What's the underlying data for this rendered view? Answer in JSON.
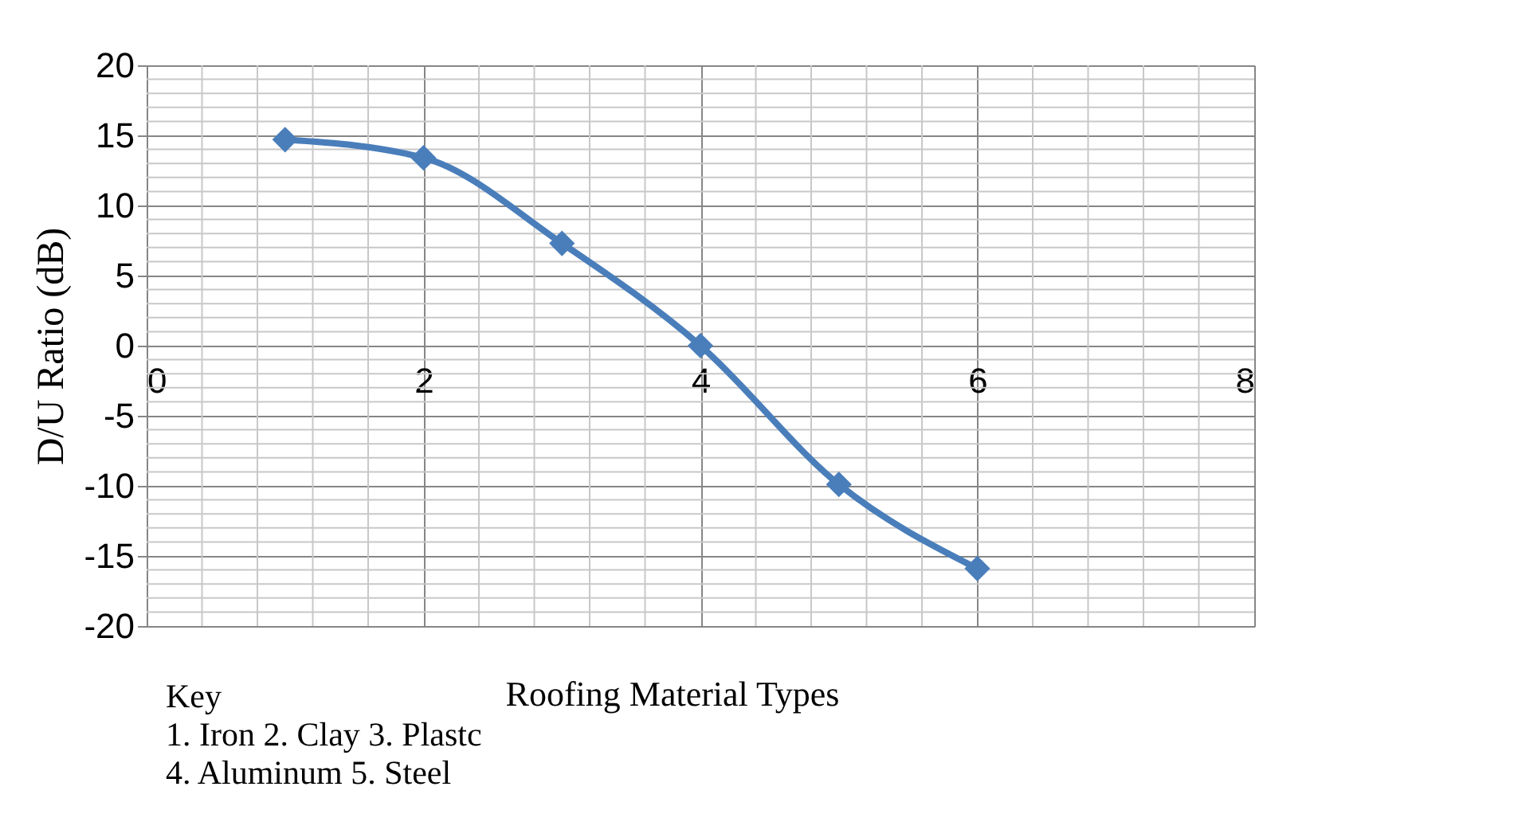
{
  "chart_data": {
    "type": "line",
    "xlabel": "Roofing Material Types",
    "ylabel": "D/U Ratio (dB)",
    "x": [
      1,
      2,
      3,
      4,
      5,
      6
    ],
    "series": [
      {
        "color": "#4a7ebb",
        "values": [
          14.7,
          13.4,
          7.3,
          0,
          -9.9,
          -15.9
        ]
      }
    ],
    "xlim": [
      0,
      8
    ],
    "xticks": [
      0,
      2,
      4,
      6,
      8
    ],
    "ylim": [
      -20,
      20
    ],
    "yticks": [
      -20,
      -15,
      -10,
      -5,
      0,
      5,
      10,
      15,
      20
    ],
    "grid": true,
    "marker": "diamond",
    "line_style": "solid",
    "annotations": [
      "Key",
      "1. Iron   2. Clay   3. Plastc",
      "4. Aluminum   5. Steel"
    ]
  }
}
